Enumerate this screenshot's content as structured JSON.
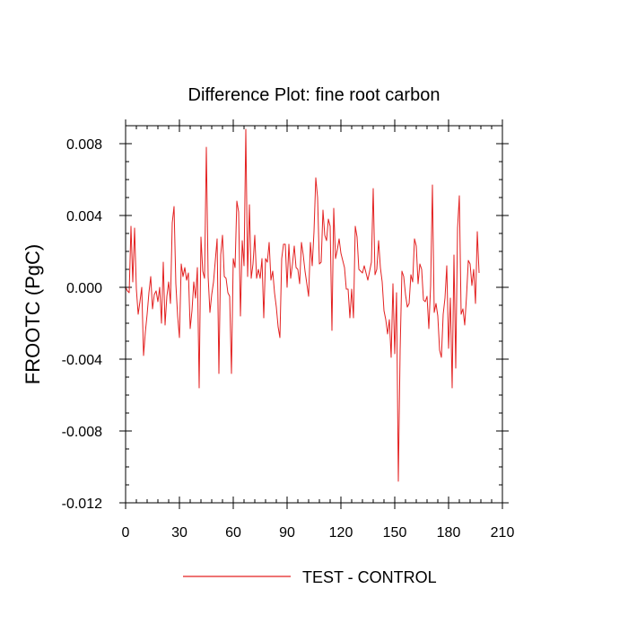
{
  "chart_data": {
    "type": "line",
    "title": "Difference Plot: fine root carbon",
    "ylabel": "FROOTC  (PgC)",
    "xlabel": "",
    "xlim": [
      0,
      210
    ],
    "ylim": [
      -0.012,
      0.009
    ],
    "x_ticks": [
      0,
      30,
      60,
      90,
      120,
      150,
      180,
      210
    ],
    "x_tick_labels": [
      "0",
      "30",
      "60",
      "90",
      "120",
      "150",
      "180",
      "210"
    ],
    "y_ticks": [
      -0.012,
      -0.008,
      -0.004,
      0.0,
      0.004,
      0.008
    ],
    "y_tick_labels": [
      "-0.012",
      "-0.008",
      "-0.004",
      "0.000",
      "0.004",
      "0.008"
    ],
    "grid": false,
    "legend_position": "bottom-center",
    "series": [
      {
        "name": "TEST - CONTROL",
        "color": "#e32020",
        "x_start": 0,
        "x_step": 1,
        "values": [
          0.0,
          -0.0002,
          -0.0003,
          0.0034,
          0.0003,
          0.0033,
          -0.0001,
          -0.0015,
          -0.0008,
          0.0,
          -0.0038,
          -0.0025,
          -0.0015,
          -0.0003,
          0.0006,
          -0.0012,
          -0.0004,
          -0.0002,
          -0.0008,
          0.0,
          -0.002,
          0.0014,
          -0.0021,
          -0.0005,
          0.0003,
          -0.0009,
          0.0036,
          0.0045,
          0.0002,
          -0.0016,
          -0.0028,
          0.0013,
          0.0006,
          0.0011,
          0.0004,
          0.0008,
          -0.0023,
          -0.0013,
          0.0003,
          -0.0006,
          0.0011,
          -0.0056,
          0.0028,
          0.0009,
          0.0005,
          0.0078,
          0.0006,
          -0.0014,
          -0.0004,
          0.0003,
          0.0015,
          0.0027,
          -0.0048,
          0.0018,
          0.0029,
          0.0006,
          0.0005,
          -0.0003,
          -0.0005,
          -0.0048,
          0.0016,
          0.0011,
          0.0048,
          0.0042,
          -0.0016,
          0.0026,
          0.0012,
          0.0088,
          0.0006,
          0.0046,
          0.0005,
          0.0013,
          0.0029,
          0.0005,
          0.001,
          0.0005,
          0.0016,
          -0.0017,
          0.0016,
          0.0014,
          0.0025,
          0.0004,
          0.0009,
          -0.0003,
          -0.0011,
          -0.0022,
          -0.0028,
          0.0016,
          0.0024,
          0.0024,
          0.0,
          0.0024,
          0.0005,
          0.0013,
          0.0023,
          0.0011,
          0.001,
          0.0002,
          0.0025,
          0.0018,
          0.0009,
          0.0002,
          -0.0005,
          0.0025,
          0.0012,
          0.0031,
          0.0061,
          0.005,
          0.0013,
          0.0014,
          0.0043,
          0.0029,
          0.0026,
          0.0038,
          0.0034,
          -0.0024,
          0.0044,
          0.0016,
          0.0021,
          0.0027,
          0.0019,
          0.0015,
          0.0011,
          -0.0001,
          -0.0001,
          -0.0017,
          -0.0001,
          -0.0017,
          0.0034,
          0.0028,
          0.001,
          0.0009,
          0.0008,
          0.0012,
          0.0008,
          0.0004,
          0.0009,
          0.0014,
          0.0055,
          0.0007,
          0.001,
          0.0026,
          0.0011,
          0.0003,
          -0.0013,
          -0.0018,
          -0.0026,
          -0.0018,
          -0.0039,
          0.0002,
          -0.0037,
          -0.0003,
          -0.0108,
          -0.0035,
          0.0009,
          0.0006,
          -0.0004,
          -0.0011,
          -0.0009,
          0.0007,
          0.0003,
          0.0027,
          0.0023,
          0.0002,
          0.0013,
          0.001,
          -0.0007,
          -0.0008,
          -0.0005,
          -0.0023,
          0.0001,
          0.0057,
          -0.0014,
          -0.0009,
          -0.0016,
          -0.0035,
          -0.0039,
          -0.0015,
          -0.0006,
          0.0012,
          -0.0034,
          -0.0006,
          -0.0056,
          0.0018,
          -0.0045,
          0.0033,
          0.0051,
          -0.0015,
          -0.0012,
          -0.0021,
          -0.0005,
          0.0015,
          0.0013,
          0.0001,
          0.001,
          -0.0009,
          0.0031,
          0.0008
        ]
      }
    ]
  }
}
